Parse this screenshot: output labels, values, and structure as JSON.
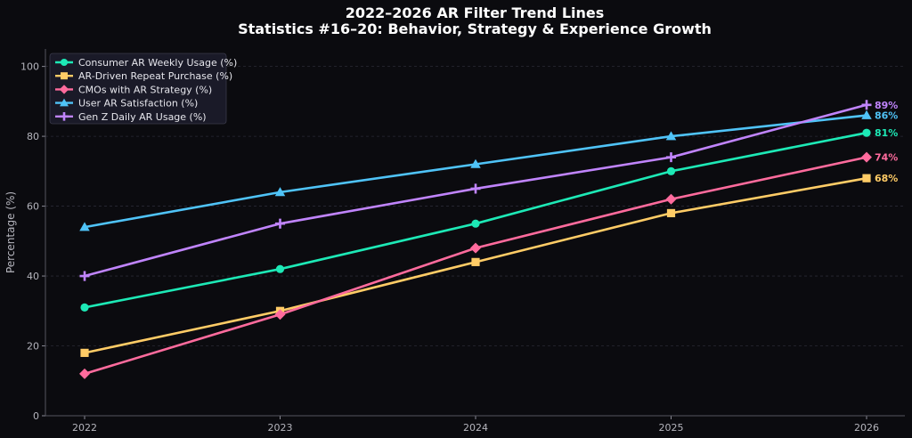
{
  "chart_data": {
    "type": "line",
    "title": "2022–2026 AR Filter Trend Lines",
    "subtitle": "Statistics #16–20: Behavior, Strategy & Experience Growth",
    "xlabel": "",
    "ylabel": "Percentage (%)",
    "x": [
      "2022",
      "2023",
      "2024",
      "2025",
      "2026"
    ],
    "ylim": [
      0,
      105
    ],
    "yticks": [
      "0",
      "20",
      "40",
      "60",
      "80",
      "100"
    ],
    "grid": "y-dashed",
    "legend_position": "top-left",
    "series": [
      {
        "name": "Consumer AR Weekly Usage (%)",
        "color": "#1de9b6",
        "marker": "circle",
        "values": [
          31,
          42,
          55,
          70,
          81
        ],
        "end_label": "81%"
      },
      {
        "name": "AR-Driven Repeat Purchase (%)",
        "color": "#ffcc66",
        "marker": "square",
        "values": [
          18,
          30,
          44,
          58,
          68
        ],
        "end_label": "68%"
      },
      {
        "name": "CMOs with AR Strategy (%)",
        "color": "#ff6b9d",
        "marker": "diamond",
        "values": [
          12,
          29,
          48,
          62,
          74
        ],
        "end_label": "74%"
      },
      {
        "name": "User AR Satisfaction (%)",
        "color": "#4fc3f7",
        "marker": "triangle",
        "values": [
          54,
          64,
          72,
          80,
          86
        ],
        "end_label": "86%"
      },
      {
        "name": "Gen Z Daily AR Usage (%)",
        "color": "#c084fc",
        "marker": "plus",
        "values": [
          40,
          55,
          65,
          74,
          89
        ],
        "end_label": "89%"
      }
    ]
  }
}
